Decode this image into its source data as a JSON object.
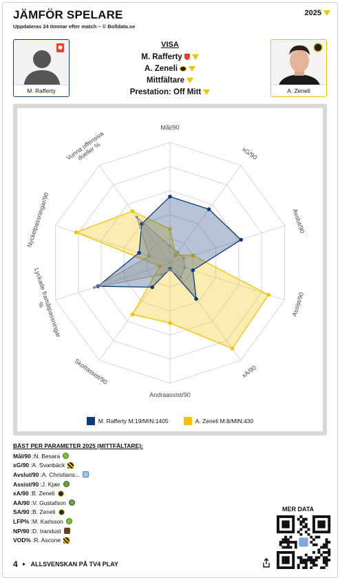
{
  "header": {
    "title": "JÄMFÖR SPELARE",
    "subtitle": "Uppdateras 24 timmar efter match – © Bolldata.se",
    "year": "2025"
  },
  "players": {
    "left": {
      "name": "M. Rafferty",
      "color": "#0d3a78"
    },
    "right": {
      "name": "A. Zeneli",
      "color": "#f2c200"
    }
  },
  "controls": {
    "visa_label": "VISA",
    "player1": "M. Rafferty",
    "player2": "A. Zeneli",
    "position": "Mittfältare",
    "performance": "Prestation: Off Mitt"
  },
  "chart_data": {
    "type": "radar",
    "axes": [
      "Mål/90",
      "xG/90",
      "Avslut/90",
      "Assist/90",
      "xA/90",
      "Andraassist/90",
      "Skottassist/90",
      "Lyckade framåtpassningar %",
      "Nyckelpassningar/90",
      "Vunna offensiva dueller %"
    ],
    "range": [
      0,
      1
    ],
    "series": [
      {
        "name": "M. Rafferty M:19/MIN:1405",
        "color": "#0d3a78",
        "values": [
          0.55,
          0.55,
          0.62,
          0.2,
          0.37,
          0.05,
          0.25,
          0.63,
          0.27,
          0.4
        ]
      },
      {
        "name": "A. Zeneli M:8/MIN:430",
        "color": "#f2c200",
        "values": [
          0.28,
          0.08,
          0.2,
          0.86,
          0.88,
          0.5,
          0.53,
          0.09,
          0.82,
          0.53
        ]
      },
      {
        "name": "",
        "color": "#888888",
        "values": [
          0.14,
          0.11,
          0.12,
          0.13,
          0.15,
          0.06,
          0.12,
          0.66,
          0.18,
          0.47
        ]
      }
    ],
    "legend": [
      {
        "label": "M. Rafferty M:19/MIN:1405",
        "color": "#0d3a78"
      },
      {
        "label": "A. Zeneli M:8/MIN:430",
        "color": "#f2c200"
      }
    ]
  },
  "best": {
    "title": "BÄST PER PARAMETER 2025 (MITTFÄLTARE):",
    "rows": [
      {
        "param": "Mål/90",
        "player": "N. Besara",
        "icon": "ic-green"
      },
      {
        "param": "xG/90",
        "player": "A. Svanbäck",
        "icon": "ic-stripe"
      },
      {
        "param": "Avslut/90",
        "player": "A. Christians...",
        "icon": "ic-blue"
      },
      {
        "param": "Assist/90",
        "player": "J. Kjær",
        "icon": "ic-hb"
      },
      {
        "param": "xA/90",
        "player": "B. Zeneli",
        "icon": "ic-blackyel"
      },
      {
        "param": "AA/90",
        "player": "V. Gustafson",
        "icon": "ic-hb"
      },
      {
        "param": "SA/90",
        "player": "B. Zeneli",
        "icon": "ic-blackyel"
      },
      {
        "param": "LFP%",
        "player": "M. Karlsson",
        "icon": "ic-green"
      },
      {
        "param": "NP/90",
        "player": "D. Irandust",
        "icon": "ic-brown"
      },
      {
        "param": "VOD%",
        "player": "R. Ascone",
        "icon": "ic-stripe"
      }
    ]
  },
  "more": {
    "label": "MER DATA"
  },
  "footer": {
    "tv4": "4",
    "text": "ALLSVENSKAN PÅ TV4 PLAY"
  }
}
